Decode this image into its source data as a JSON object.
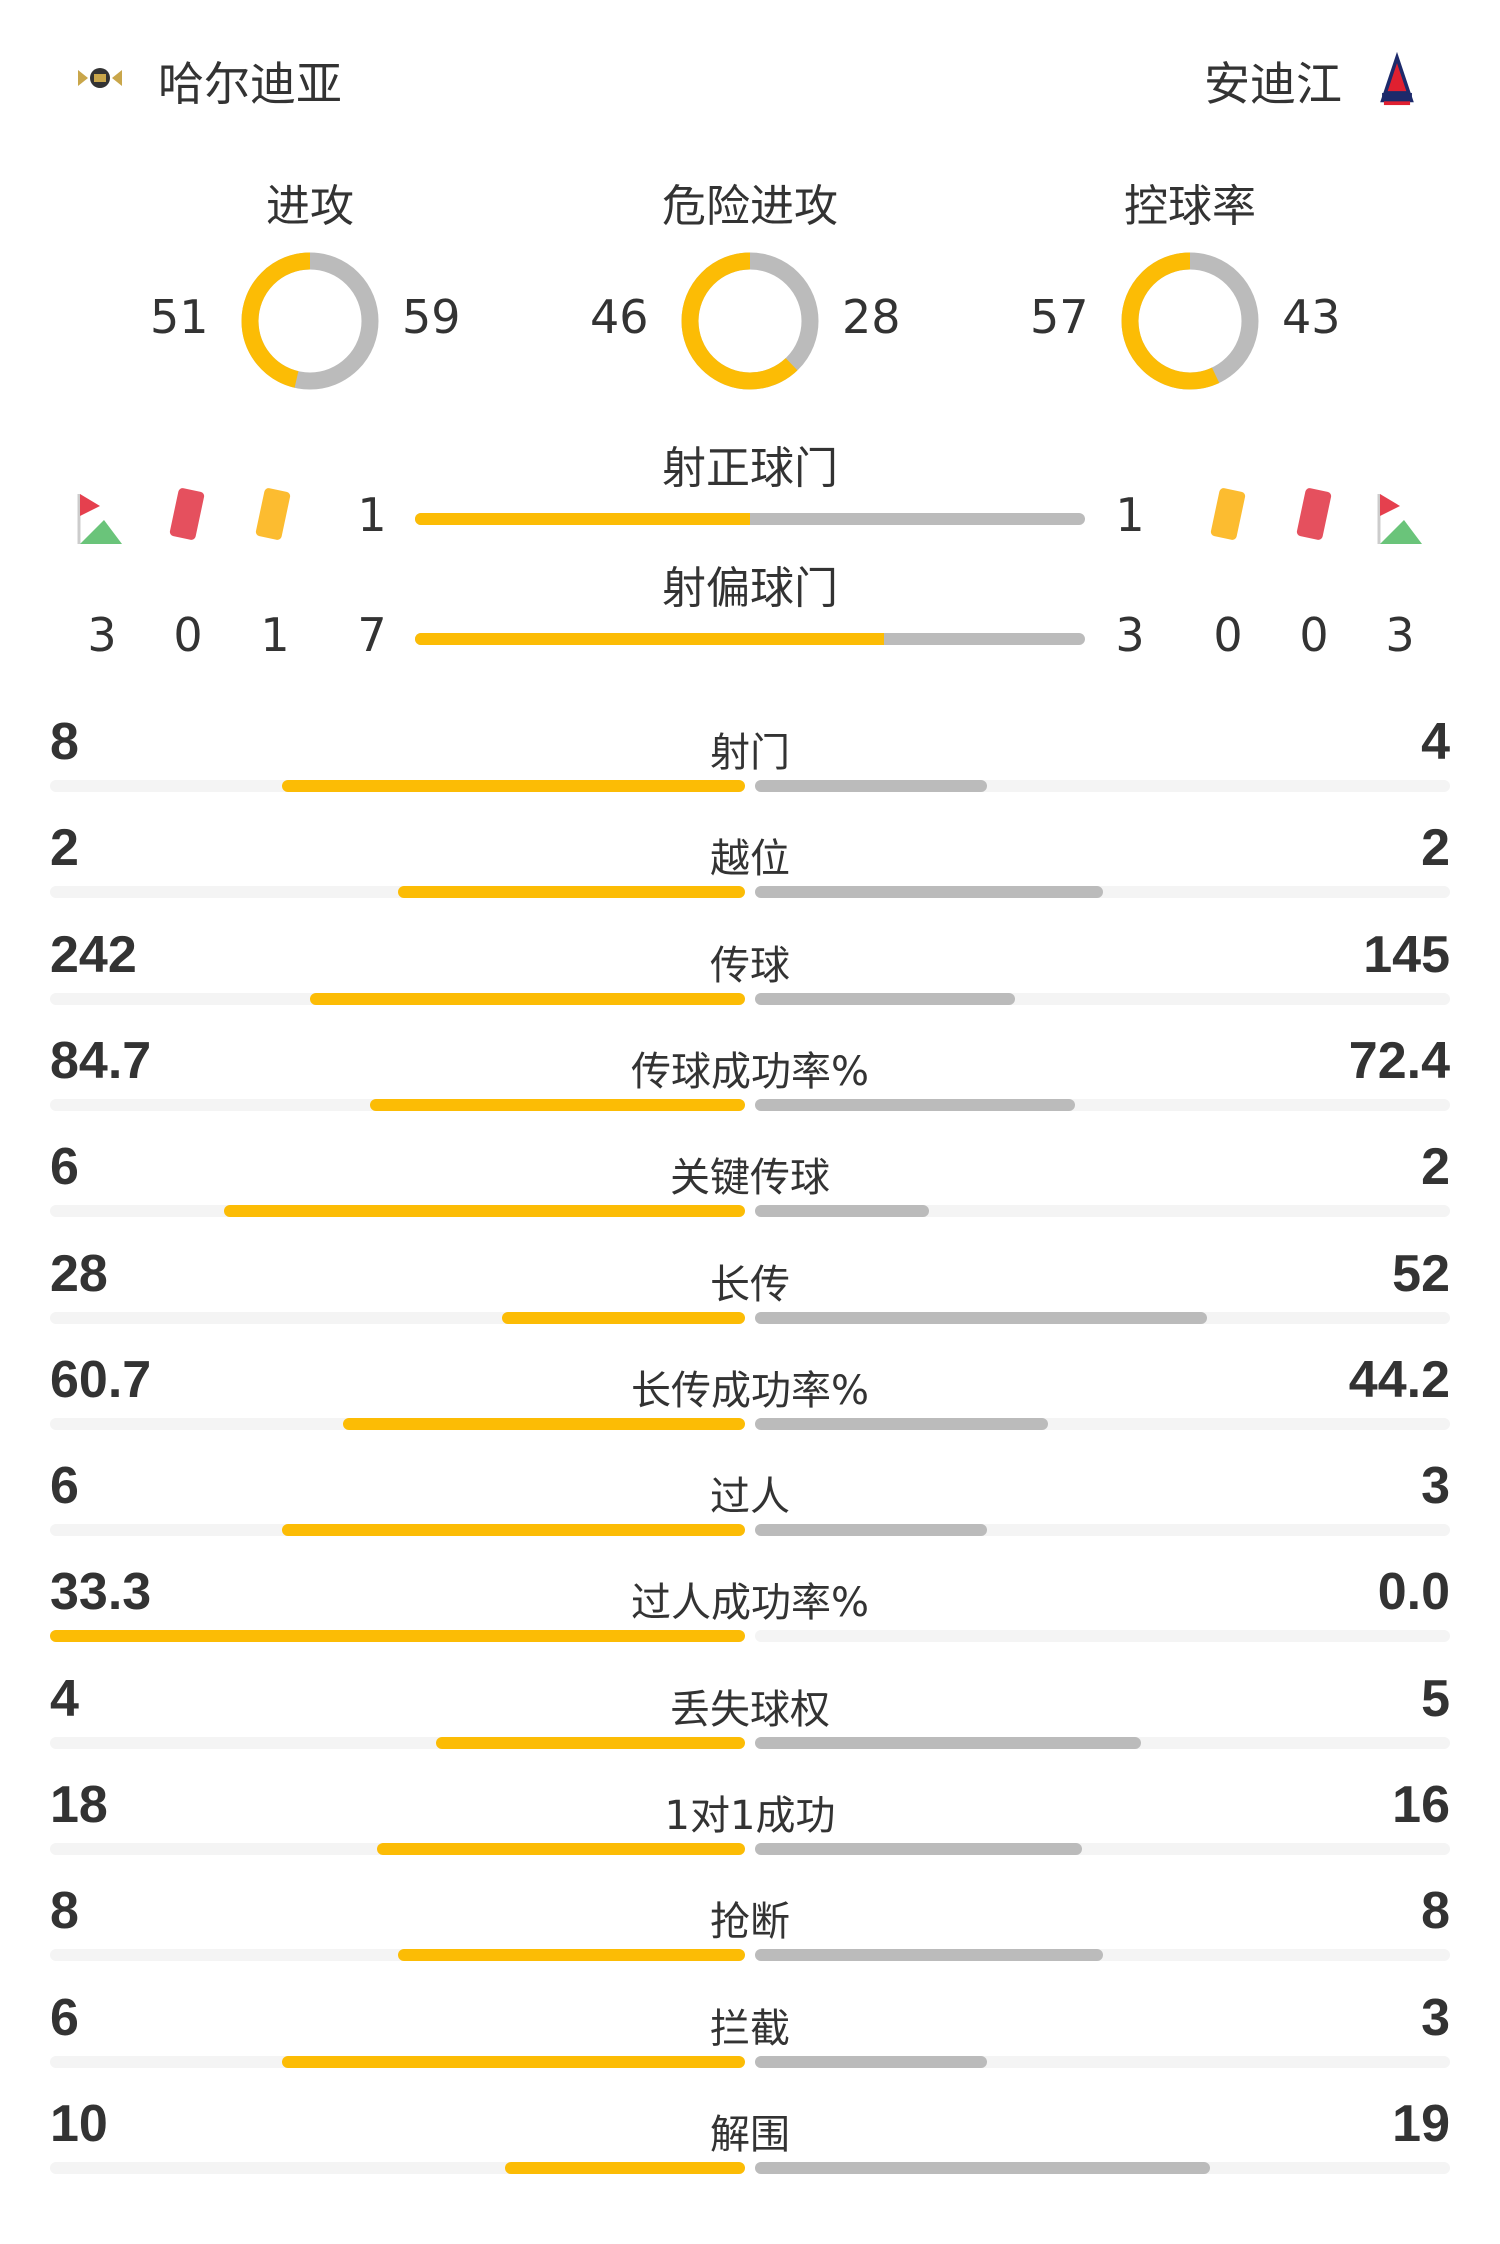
{
  "home": {
    "name": "哈尔迪亚",
    "logo": "hardia-crest"
  },
  "away": {
    "name": "安迪江",
    "logo": "andijon-crest"
  },
  "colors": {
    "home": "#fcbc05",
    "away": "#bbbbbb",
    "track": "#f4f4f4"
  },
  "donuts": [
    {
      "label": "进攻",
      "home": 51,
      "away": 59
    },
    {
      "label": "危险进攻",
      "home": 46,
      "away": 28
    },
    {
      "label": "控球率",
      "home": 57,
      "away": 43
    }
  ],
  "shots_on": {
    "label": "射正球门",
    "home": 1,
    "away": 1
  },
  "shots_off": {
    "label": "射偏球门",
    "home": 7,
    "away": 3
  },
  "home_events": {
    "corners": 3,
    "red_cards": 0,
    "yellow_cards": 1
  },
  "away_events": {
    "corners": 3,
    "red_cards": 0,
    "yellow_cards": 0
  },
  "stats": [
    {
      "label": "射门",
      "home": "8",
      "away": "4"
    },
    {
      "label": "越位",
      "home": "2",
      "away": "2"
    },
    {
      "label": "传球",
      "home": "242",
      "away": "145"
    },
    {
      "label": "传球成功率%",
      "home": "84.7",
      "away": "72.4"
    },
    {
      "label": "关键传球",
      "home": "6",
      "away": "2"
    },
    {
      "label": "长传",
      "home": "28",
      "away": "52"
    },
    {
      "label": "长传成功率%",
      "home": "60.7",
      "away": "44.2"
    },
    {
      "label": "过人",
      "home": "6",
      "away": "3"
    },
    {
      "label": "过人成功率%",
      "home": "33.3",
      "away": "0.0"
    },
    {
      "label": "丢失球权",
      "home": "4",
      "away": "5"
    },
    {
      "label": "1对1成功",
      "home": "18",
      "away": "16"
    },
    {
      "label": "抢断",
      "home": "8",
      "away": "8"
    },
    {
      "label": "拦截",
      "home": "6",
      "away": "3"
    },
    {
      "label": "解围",
      "home": "10",
      "away": "19"
    }
  ]
}
